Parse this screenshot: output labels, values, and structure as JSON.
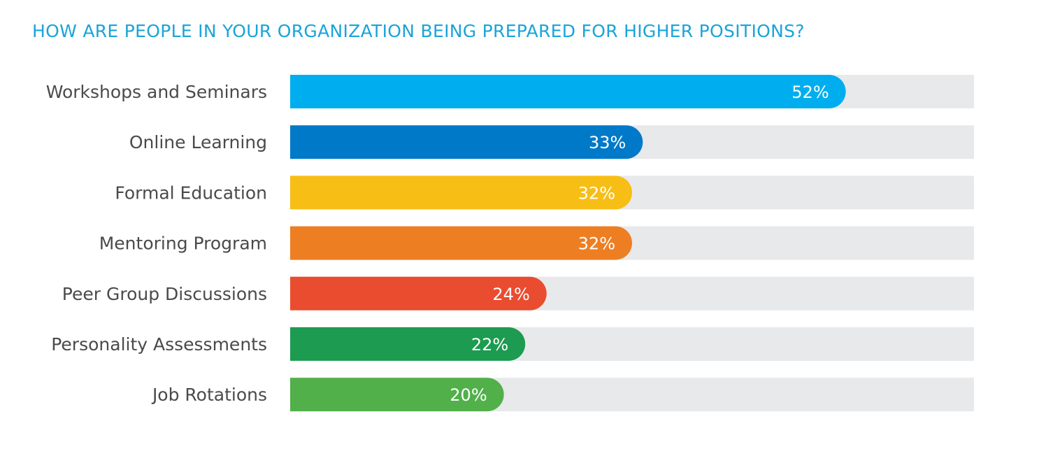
{
  "chart_data": {
    "type": "bar",
    "orientation": "horizontal",
    "title": "HOW ARE PEOPLE IN YOUR ORGANIZATION BEING PREPARED FOR HIGHER POSITIONS?",
    "title_color": "#1aa4d8",
    "categories": [
      "Workshops and Seminars",
      "Online Learning",
      "Formal Education",
      "Mentoring Program",
      "Peer Group Discussions",
      "Personality Assessments",
      "Job Rotations"
    ],
    "values": [
      52,
      33,
      32,
      32,
      24,
      22,
      20
    ],
    "value_labels": [
      "52%",
      "33%",
      "32%",
      "32%",
      "24%",
      "22%",
      "20%"
    ],
    "colors": [
      "#00aeef",
      "#0079c8",
      "#f7be16",
      "#ee7e22",
      "#ea4c2f",
      "#1d9b50",
      "#52b04a"
    ],
    "track_color": "#e8e9eb",
    "xlim": [
      0,
      64
    ],
    "grid": false,
    "legend": false
  }
}
